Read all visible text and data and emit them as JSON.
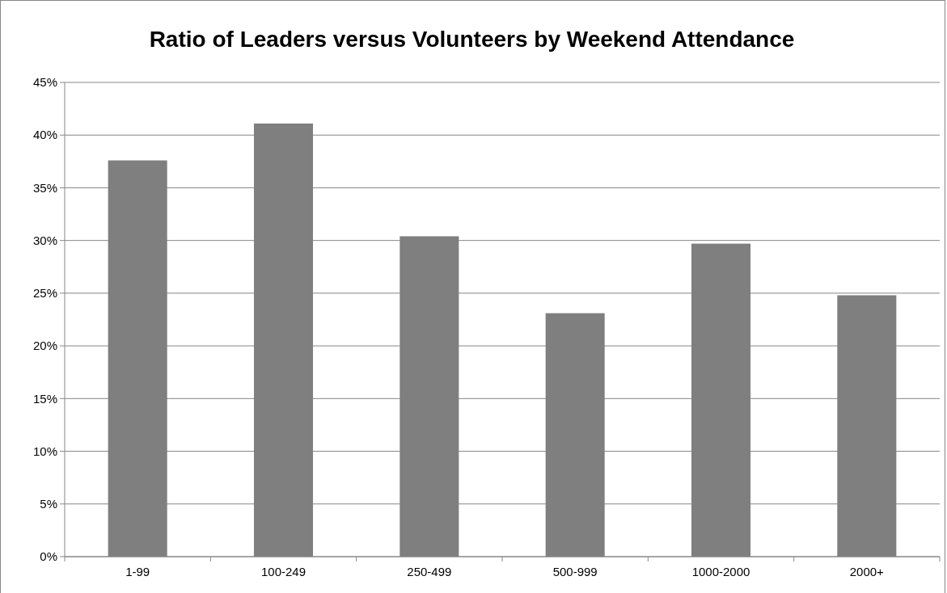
{
  "chart_data": {
    "type": "bar",
    "title": "Ratio of Leaders versus Volunteers  by Weekend Attendance",
    "categories": [
      "1-99",
      "100-249",
      "250-499",
      "500-999",
      "1000-2000",
      "2000+"
    ],
    "values": [
      37.6,
      41.1,
      30.4,
      23.1,
      29.7,
      24.8
    ],
    "color": "#7f7f7f",
    "ylim": [
      0,
      45
    ],
    "yticks": [
      {
        "value": 0,
        "label": "0%"
      },
      {
        "value": 5,
        "label": "5%"
      },
      {
        "value": 10,
        "label": "10%"
      },
      {
        "value": 15,
        "label": "15%"
      },
      {
        "value": 20,
        "label": "20%"
      },
      {
        "value": 25,
        "label": "25%"
      },
      {
        "value": 30,
        "label": "30%"
      },
      {
        "value": 35,
        "label": "35%"
      },
      {
        "value": 40,
        "label": "40%"
      },
      {
        "value": 45,
        "label": "45%"
      }
    ],
    "grid": "y"
  }
}
